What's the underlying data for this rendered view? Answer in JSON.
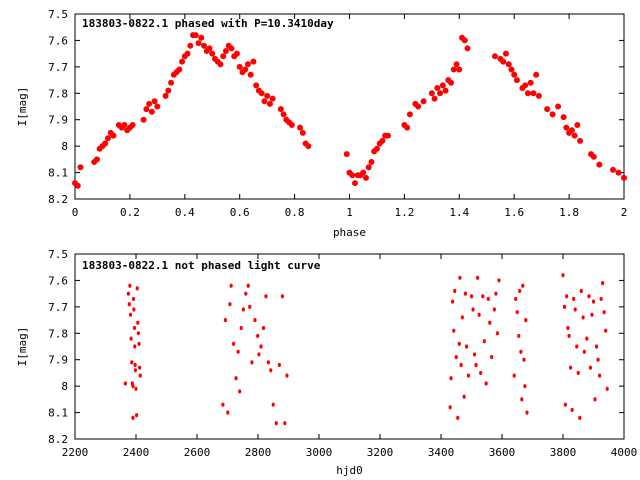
{
  "colors": {
    "points": "#ff0000",
    "frame": "#000000",
    "background": "#ffffff"
  },
  "chart_data": [
    {
      "type": "scatter",
      "title": "183803-0822.1 phased with P=10.3410day",
      "xlabel": "phase",
      "ylabel": "I[mag]",
      "xlim": [
        0,
        2
      ],
      "ylim": [
        8.2,
        7.5
      ],
      "y_inverted": true,
      "grid": false,
      "legend": "none",
      "x_ticks": [
        "0",
        "0.2",
        "0.4",
        "0.6",
        "0.8",
        "1",
        "1.2",
        "1.4",
        "1.6",
        "1.8",
        "2"
      ],
      "y_ticks": [
        "7.5",
        "7.6",
        "7.7",
        "7.8",
        "7.9",
        "8",
        "8.1",
        "8.2"
      ],
      "marker": "filled-circle",
      "points": [
        [
          0.0,
          8.14
        ],
        [
          0.01,
          8.15
        ],
        [
          0.02,
          8.08
        ],
        [
          0.07,
          8.06
        ],
        [
          0.08,
          8.05
        ],
        [
          0.09,
          8.01
        ],
        [
          0.1,
          8.0
        ],
        [
          0.11,
          7.99
        ],
        [
          0.12,
          7.97
        ],
        [
          0.13,
          7.95
        ],
        [
          0.14,
          7.96
        ],
        [
          0.16,
          7.92
        ],
        [
          0.17,
          7.93
        ],
        [
          0.18,
          7.92
        ],
        [
          0.19,
          7.94
        ],
        [
          0.2,
          7.93
        ],
        [
          0.21,
          7.92
        ],
        [
          0.25,
          7.9
        ],
        [
          0.26,
          7.86
        ],
        [
          0.27,
          7.84
        ],
        [
          0.28,
          7.87
        ],
        [
          0.29,
          7.83
        ],
        [
          0.3,
          7.85
        ],
        [
          0.33,
          7.81
        ],
        [
          0.34,
          7.79
        ],
        [
          0.35,
          7.76
        ],
        [
          0.36,
          7.73
        ],
        [
          0.37,
          7.72
        ],
        [
          0.38,
          7.71
        ],
        [
          0.39,
          7.68
        ],
        [
          0.4,
          7.66
        ],
        [
          0.41,
          7.65
        ],
        [
          0.42,
          7.62
        ],
        [
          0.43,
          7.58
        ],
        [
          0.44,
          7.58
        ],
        [
          0.45,
          7.61
        ],
        [
          0.46,
          7.59
        ],
        [
          0.47,
          7.62
        ],
        [
          0.48,
          7.64
        ],
        [
          0.49,
          7.63
        ],
        [
          0.5,
          7.65
        ],
        [
          0.51,
          7.67
        ],
        [
          0.52,
          7.68
        ],
        [
          0.53,
          7.69
        ],
        [
          0.54,
          7.66
        ],
        [
          0.55,
          7.64
        ],
        [
          0.56,
          7.62
        ],
        [
          0.57,
          7.63
        ],
        [
          0.58,
          7.66
        ],
        [
          0.59,
          7.65
        ],
        [
          0.6,
          7.7
        ],
        [
          0.61,
          7.72
        ],
        [
          0.62,
          7.71
        ],
        [
          0.63,
          7.69
        ],
        [
          0.64,
          7.73
        ],
        [
          0.65,
          7.68
        ],
        [
          0.66,
          7.77
        ],
        [
          0.67,
          7.79
        ],
        [
          0.68,
          7.8
        ],
        [
          0.69,
          7.83
        ],
        [
          0.7,
          7.81
        ],
        [
          0.71,
          7.84
        ],
        [
          0.72,
          7.82
        ],
        [
          0.75,
          7.86
        ],
        [
          0.76,
          7.88
        ],
        [
          0.77,
          7.9
        ],
        [
          0.78,
          7.91
        ],
        [
          0.79,
          7.92
        ],
        [
          0.82,
          7.93
        ],
        [
          0.83,
          7.95
        ],
        [
          0.84,
          7.99
        ],
        [
          0.85,
          8.0
        ],
        [
          0.99,
          8.03
        ],
        [
          1.0,
          8.1
        ],
        [
          1.01,
          8.11
        ],
        [
          1.02,
          8.14
        ],
        [
          1.03,
          8.11
        ],
        [
          1.04,
          8.11
        ],
        [
          1.05,
          8.1
        ],
        [
          1.06,
          8.12
        ],
        [
          1.07,
          8.08
        ],
        [
          1.08,
          8.06
        ],
        [
          1.09,
          8.02
        ],
        [
          1.1,
          8.01
        ],
        [
          1.11,
          7.99
        ],
        [
          1.12,
          7.98
        ],
        [
          1.13,
          7.96
        ],
        [
          1.14,
          7.96
        ],
        [
          1.2,
          7.92
        ],
        [
          1.21,
          7.93
        ],
        [
          1.22,
          7.88
        ],
        [
          1.24,
          7.84
        ],
        [
          1.25,
          7.85
        ],
        [
          1.27,
          7.83
        ],
        [
          1.3,
          7.8
        ],
        [
          1.31,
          7.82
        ],
        [
          1.32,
          7.78
        ],
        [
          1.33,
          7.8
        ],
        [
          1.34,
          7.77
        ],
        [
          1.35,
          7.79
        ],
        [
          1.36,
          7.75
        ],
        [
          1.37,
          7.76
        ],
        [
          1.38,
          7.71
        ],
        [
          1.39,
          7.69
        ],
        [
          1.4,
          7.71
        ],
        [
          1.41,
          7.59
        ],
        [
          1.42,
          7.6
        ],
        [
          1.43,
          7.63
        ],
        [
          1.53,
          7.66
        ],
        [
          1.55,
          7.67
        ],
        [
          1.56,
          7.68
        ],
        [
          1.57,
          7.65
        ],
        [
          1.58,
          7.69
        ],
        [
          1.59,
          7.71
        ],
        [
          1.6,
          7.73
        ],
        [
          1.61,
          7.75
        ],
        [
          1.63,
          7.78
        ],
        [
          1.64,
          7.77
        ],
        [
          1.65,
          7.8
        ],
        [
          1.66,
          7.76
        ],
        [
          1.67,
          7.8
        ],
        [
          1.68,
          7.73
        ],
        [
          1.69,
          7.81
        ],
        [
          1.72,
          7.86
        ],
        [
          1.74,
          7.88
        ],
        [
          1.76,
          7.85
        ],
        [
          1.78,
          7.89
        ],
        [
          1.79,
          7.93
        ],
        [
          1.8,
          7.95
        ],
        [
          1.81,
          7.94
        ],
        [
          1.82,
          7.96
        ],
        [
          1.83,
          7.92
        ],
        [
          1.84,
          7.98
        ],
        [
          1.88,
          8.03
        ],
        [
          1.89,
          8.04
        ],
        [
          1.91,
          8.07
        ],
        [
          1.96,
          8.09
        ],
        [
          1.98,
          8.1
        ],
        [
          2.0,
          8.12
        ]
      ]
    },
    {
      "type": "scatter",
      "title": "183803-0822.1 not phased light curve",
      "xlabel": "hjd0",
      "ylabel": "I[mag]",
      "xlim": [
        2200,
        4000
      ],
      "ylim": [
        8.2,
        7.5
      ],
      "y_inverted": true,
      "grid": false,
      "legend": "none",
      "x_ticks": [
        "2200",
        "2400",
        "2600",
        "2800",
        "3000",
        "3200",
        "3400",
        "3600",
        "3800",
        "4000"
      ],
      "y_ticks": [
        "7.5",
        "7.6",
        "7.7",
        "7.8",
        "7.9",
        "8",
        "8.1",
        "8.2"
      ],
      "marker": "small-dot",
      "points": [
        [
          2365,
          7.99
        ],
        [
          2375,
          7.65
        ],
        [
          2378,
          7.69
        ],
        [
          2380,
          7.62
        ],
        [
          2382,
          7.73
        ],
        [
          2384,
          7.82
        ],
        [
          2386,
          7.91
        ],
        [
          2388,
          7.99
        ],
        [
          2390,
          8.0
        ],
        [
          2392,
          7.67
        ],
        [
          2393,
          7.71
        ],
        [
          2395,
          7.78
        ],
        [
          2396,
          7.85
        ],
        [
          2397,
          7.92
        ],
        [
          2398,
          7.94
        ],
        [
          2400,
          8.01
        ],
        [
          2402,
          8.11
        ],
        [
          2404,
          7.63
        ],
        [
          2406,
          7.76
        ],
        [
          2408,
          7.8
        ],
        [
          2410,
          7.84
        ],
        [
          2412,
          7.93
        ],
        [
          2414,
          7.96
        ],
        [
          2390,
          8.12
        ],
        [
          2685,
          8.07
        ],
        [
          2693,
          7.75
        ],
        [
          2701,
          8.1
        ],
        [
          2708,
          7.69
        ],
        [
          2712,
          7.62
        ],
        [
          2720,
          7.84
        ],
        [
          2728,
          7.97
        ],
        [
          2735,
          7.87
        ],
        [
          2740,
          8.02
        ],
        [
          2745,
          7.78
        ],
        [
          2752,
          7.71
        ],
        [
          2760,
          7.65
        ],
        [
          2768,
          7.62
        ],
        [
          2773,
          7.7
        ],
        [
          2780,
          7.91
        ],
        [
          2790,
          7.75
        ],
        [
          2799,
          7.81
        ],
        [
          2803,
          7.88
        ],
        [
          2810,
          7.85
        ],
        [
          2818,
          7.78
        ],
        [
          2826,
          7.66
        ],
        [
          2834,
          7.91
        ],
        [
          2842,
          7.94
        ],
        [
          2850,
          8.07
        ],
        [
          2860,
          8.14
        ],
        [
          2870,
          7.92
        ],
        [
          2880,
          7.66
        ],
        [
          2888,
          8.14
        ],
        [
          2895,
          7.96
        ],
        [
          3430,
          8.08
        ],
        [
          3433,
          7.97
        ],
        [
          3438,
          7.68
        ],
        [
          3442,
          7.79
        ],
        [
          3445,
          7.64
        ],
        [
          3450,
          7.89
        ],
        [
          3455,
          8.12
        ],
        [
          3460,
          7.84
        ],
        [
          3462,
          7.59
        ],
        [
          3466,
          7.92
        ],
        [
          3470,
          7.74
        ],
        [
          3476,
          8.04
        ],
        [
          3480,
          7.65
        ],
        [
          3484,
          7.85
        ],
        [
          3490,
          7.96
        ],
        [
          3500,
          7.66
        ],
        [
          3505,
          7.71
        ],
        [
          3510,
          7.88
        ],
        [
          3515,
          7.92
        ],
        [
          3520,
          7.59
        ],
        [
          3525,
          7.73
        ],
        [
          3530,
          7.95
        ],
        [
          3537,
          7.66
        ],
        [
          3542,
          7.83
        ],
        [
          3548,
          7.99
        ],
        [
          3555,
          7.67
        ],
        [
          3560,
          7.76
        ],
        [
          3566,
          7.89
        ],
        [
          3575,
          7.71
        ],
        [
          3580,
          7.65
        ],
        [
          3585,
          7.8
        ],
        [
          3590,
          7.6
        ],
        [
          3640,
          7.96
        ],
        [
          3645,
          7.67
        ],
        [
          3650,
          7.72
        ],
        [
          3655,
          7.81
        ],
        [
          3658,
          7.64
        ],
        [
          3662,
          7.87
        ],
        [
          3665,
          8.05
        ],
        [
          3668,
          7.62
        ],
        [
          3672,
          7.9
        ],
        [
          3675,
          8.0
        ],
        [
          3678,
          7.75
        ],
        [
          3682,
          8.1
        ],
        [
          3800,
          7.58
        ],
        [
          3805,
          7.7
        ],
        [
          3808,
          8.07
        ],
        [
          3812,
          7.66
        ],
        [
          3816,
          7.78
        ],
        [
          3820,
          7.81
        ],
        [
          3825,
          7.93
        ],
        [
          3830,
          8.09
        ],
        [
          3835,
          7.67
        ],
        [
          3840,
          7.71
        ],
        [
          3845,
          7.85
        ],
        [
          3850,
          7.95
        ],
        [
          3855,
          8.12
        ],
        [
          3860,
          7.64
        ],
        [
          3866,
          7.74
        ],
        [
          3870,
          7.87
        ],
        [
          3878,
          7.82
        ],
        [
          3885,
          7.66
        ],
        [
          3890,
          7.93
        ],
        [
          3895,
          7.73
        ],
        [
          3900,
          7.68
        ],
        [
          3905,
          8.05
        ],
        [
          3910,
          7.85
        ],
        [
          3915,
          7.9
        ],
        [
          3920,
          7.96
        ],
        [
          3925,
          7.67
        ],
        [
          3930,
          7.61
        ],
        [
          3935,
          7.72
        ],
        [
          3940,
          7.79
        ],
        [
          3945,
          8.01
        ]
      ]
    }
  ]
}
